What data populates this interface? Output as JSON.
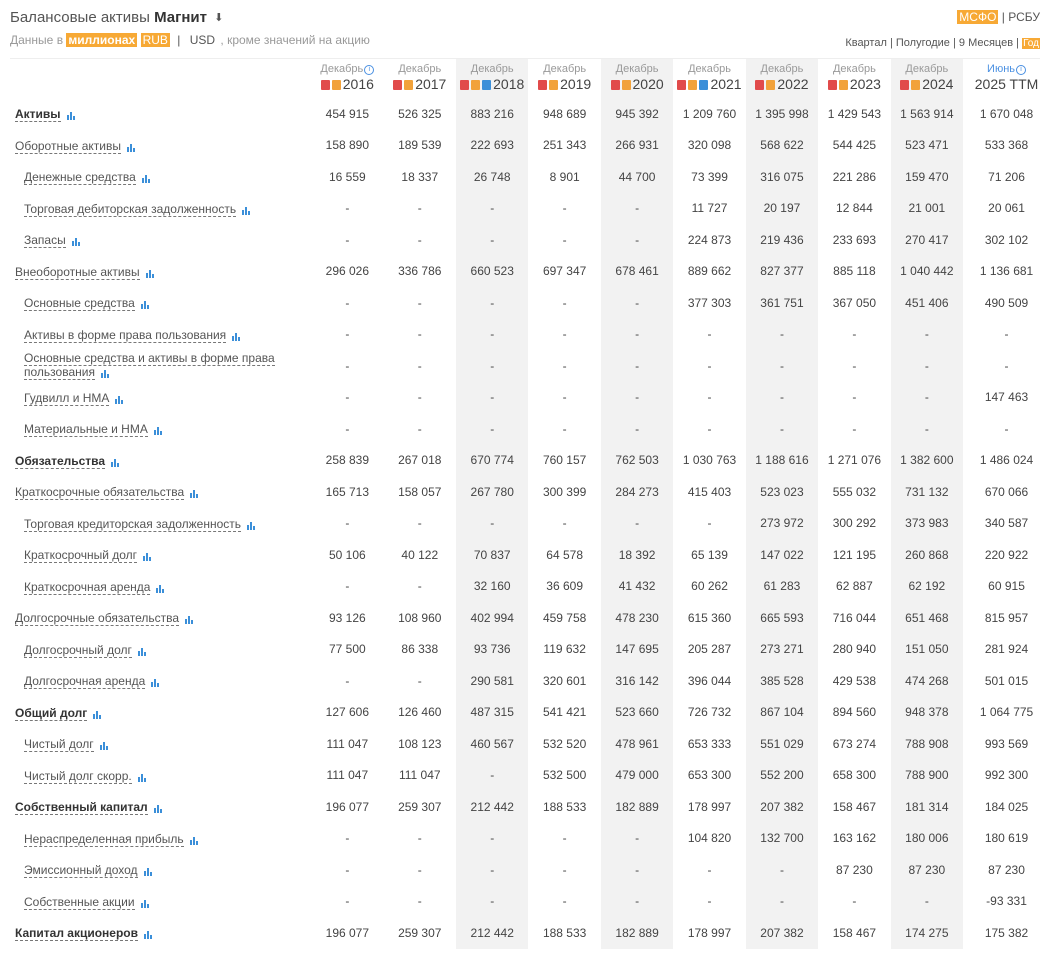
{
  "header": {
    "title_prefix": "Балансовые активы",
    "company": "Магнит",
    "download_icon": "download-icon",
    "subtitle_prefix": "Данные в",
    "unit": "миллионах",
    "currency_rub": "RUB",
    "separator": "|",
    "currency_usd": "USD",
    "subtitle_suffix": ", кроме значений на акцию"
  },
  "standards": {
    "msfo": "МСФО",
    "sep": "|",
    "rsbu": "РСБУ"
  },
  "periods": [
    "Квартал",
    "Полугодие",
    "9 Месяцев",
    "Год"
  ],
  "columns": [
    {
      "month": "Декабрь",
      "year": "2016",
      "info": true
    },
    {
      "month": "Декабрь",
      "year": "2017"
    },
    {
      "month": "Декабрь",
      "year": "2018",
      "xls": true
    },
    {
      "month": "Декабрь",
      "year": "2019"
    },
    {
      "month": "Декабрь",
      "year": "2020"
    },
    {
      "month": "Декабрь",
      "year": "2021",
      "xls": true
    },
    {
      "month": "Декабрь",
      "year": "2022"
    },
    {
      "month": "Декабрь",
      "year": "2023"
    },
    {
      "month": "Декабрь",
      "year": "2024"
    },
    {
      "month": "Июнь",
      "year": "2025 TTM",
      "info": true,
      "blue": true,
      "no_docs": true
    }
  ],
  "rows": [
    {
      "label": "Активы",
      "bold": true,
      "values": [
        "454 915",
        "526 325",
        "883 216",
        "948 689",
        "945 392",
        "1 209 760",
        "1 395 998",
        "1 429 543",
        "1 563 914",
        "1 670 048"
      ]
    },
    {
      "label": "Оборотные активы",
      "values": [
        "158 890",
        "189 539",
        "222 693",
        "251 343",
        "266 931",
        "320 098",
        "568 622",
        "544 425",
        "523 471",
        "533 368"
      ]
    },
    {
      "label": "Денежные средства",
      "sub": true,
      "values": [
        "16 559",
        "18 337",
        "26 748",
        "8 901",
        "44 700",
        "73 399",
        "316 075",
        "221 286",
        "159 470",
        "71 206"
      ]
    },
    {
      "label": "Торговая дебиторская задолженность",
      "sub": true,
      "values": [
        "-",
        "-",
        "-",
        "-",
        "-",
        "11 727",
        "20 197",
        "12 844",
        "21 001",
        "20 061"
      ]
    },
    {
      "label": "Запасы",
      "sub": true,
      "values": [
        "-",
        "-",
        "-",
        "-",
        "-",
        "224 873",
        "219 436",
        "233 693",
        "270 417",
        "302 102"
      ]
    },
    {
      "label": "Внеоборотные активы",
      "values": [
        "296 026",
        "336 786",
        "660 523",
        "697 347",
        "678 461",
        "889 662",
        "827 377",
        "885 118",
        "1 040 442",
        "1 136 681"
      ]
    },
    {
      "label": "Основные средства",
      "sub": true,
      "values": [
        "-",
        "-",
        "-",
        "-",
        "-",
        "377 303",
        "361 751",
        "367 050",
        "451 406",
        "490 509"
      ]
    },
    {
      "label": "Активы в форме права пользования",
      "sub": true,
      "values": [
        "-",
        "-",
        "-",
        "-",
        "-",
        "-",
        "-",
        "-",
        "-",
        "-"
      ]
    },
    {
      "label": "Основные средства и активы в форме права пользования",
      "sub": true,
      "two_line": true,
      "values": [
        "-",
        "-",
        "-",
        "-",
        "-",
        "-",
        "-",
        "-",
        "-",
        "-"
      ]
    },
    {
      "label": "Гудвилл и НМА",
      "sub": true,
      "values": [
        "-",
        "-",
        "-",
        "-",
        "-",
        "-",
        "-",
        "-",
        "-",
        "147 463"
      ]
    },
    {
      "label": "Материальные и НМА",
      "sub": true,
      "values": [
        "-",
        "-",
        "-",
        "-",
        "-",
        "-",
        "-",
        "-",
        "-",
        "-"
      ]
    },
    {
      "label": "Обязательства",
      "bold": true,
      "values": [
        "258 839",
        "267 018",
        "670 774",
        "760 157",
        "762 503",
        "1 030 763",
        "1 188 616",
        "1 271 076",
        "1 382 600",
        "1 486 024"
      ]
    },
    {
      "label": "Краткосрочные обязательства",
      "values": [
        "165 713",
        "158 057",
        "267 780",
        "300 399",
        "284 273",
        "415 403",
        "523 023",
        "555 032",
        "731 132",
        "670 066"
      ]
    },
    {
      "label": "Торговая кредиторская задолженность",
      "sub": true,
      "values": [
        "-",
        "-",
        "-",
        "-",
        "-",
        "-",
        "273 972",
        "300 292",
        "373 983",
        "340 587"
      ]
    },
    {
      "label": "Краткосрочный долг",
      "sub": true,
      "values": [
        "50 106",
        "40 122",
        "70 837",
        "64 578",
        "18 392",
        "65 139",
        "147 022",
        "121 195",
        "260 868",
        "220 922"
      ]
    },
    {
      "label": "Краткосрочная аренда",
      "sub": true,
      "values": [
        "-",
        "-",
        "32 160",
        "36 609",
        "41 432",
        "60 262",
        "61 283",
        "62 887",
        "62 192",
        "60 915"
      ]
    },
    {
      "label": "Долгосрочные обязательства",
      "values": [
        "93 126",
        "108 960",
        "402 994",
        "459 758",
        "478 230",
        "615 360",
        "665 593",
        "716 044",
        "651 468",
        "815 957"
      ]
    },
    {
      "label": "Долгосрочный долг",
      "sub": true,
      "values": [
        "77 500",
        "86 338",
        "93 736",
        "119 632",
        "147 695",
        "205 287",
        "273 271",
        "280 940",
        "151 050",
        "281 924"
      ]
    },
    {
      "label": "Долгосрочная аренда",
      "sub": true,
      "values": [
        "-",
        "-",
        "290 581",
        "320 601",
        "316 142",
        "396 044",
        "385 528",
        "429 538",
        "474 268",
        "501 015"
      ]
    },
    {
      "label": "Общий долг",
      "bold": true,
      "values": [
        "127 606",
        "126 460",
        "487 315",
        "541 421",
        "523 660",
        "726 732",
        "867 104",
        "894 560",
        "948 378",
        "1 064 775"
      ]
    },
    {
      "label": "Чистый долг",
      "sub": true,
      "values": [
        "111 047",
        "108 123",
        "460 567",
        "532 520",
        "478 961",
        "653 333",
        "551 029",
        "673 274",
        "788 908",
        "993 569"
      ]
    },
    {
      "label": "Чистый долг скорр.",
      "sub": true,
      "values": [
        "111 047",
        "111 047",
        "-",
        "532 500",
        "479 000",
        "653 300",
        "552 200",
        "658 300",
        "788 900",
        "992 300"
      ]
    },
    {
      "label": "Собственный капитал",
      "bold": true,
      "values": [
        "196 077",
        "259 307",
        "212 442",
        "188 533",
        "182 889",
        "178 997",
        "207 382",
        "158 467",
        "181 314",
        "184 025"
      ]
    },
    {
      "label": "Нераспределенная прибыль",
      "sub": true,
      "values": [
        "-",
        "-",
        "-",
        "-",
        "-",
        "104 820",
        "132 700",
        "163 162",
        "180 006",
        "180 619"
      ]
    },
    {
      "label": "Эмиссионный доход",
      "sub": true,
      "values": [
        "-",
        "-",
        "-",
        "-",
        "-",
        "-",
        "-",
        "87 230",
        "87 230",
        "87 230"
      ]
    },
    {
      "label": "Собственные акции",
      "sub": true,
      "values": [
        "-",
        "-",
        "-",
        "-",
        "-",
        "-",
        "-",
        "-",
        "-",
        "-93 331"
      ]
    },
    {
      "label": "Капитал акционеров",
      "bold": true,
      "values": [
        "196 077",
        "259 307",
        "212 442",
        "188 533",
        "182 889",
        "178 997",
        "207 382",
        "158 467",
        "174 275",
        "175 382"
      ]
    }
  ]
}
